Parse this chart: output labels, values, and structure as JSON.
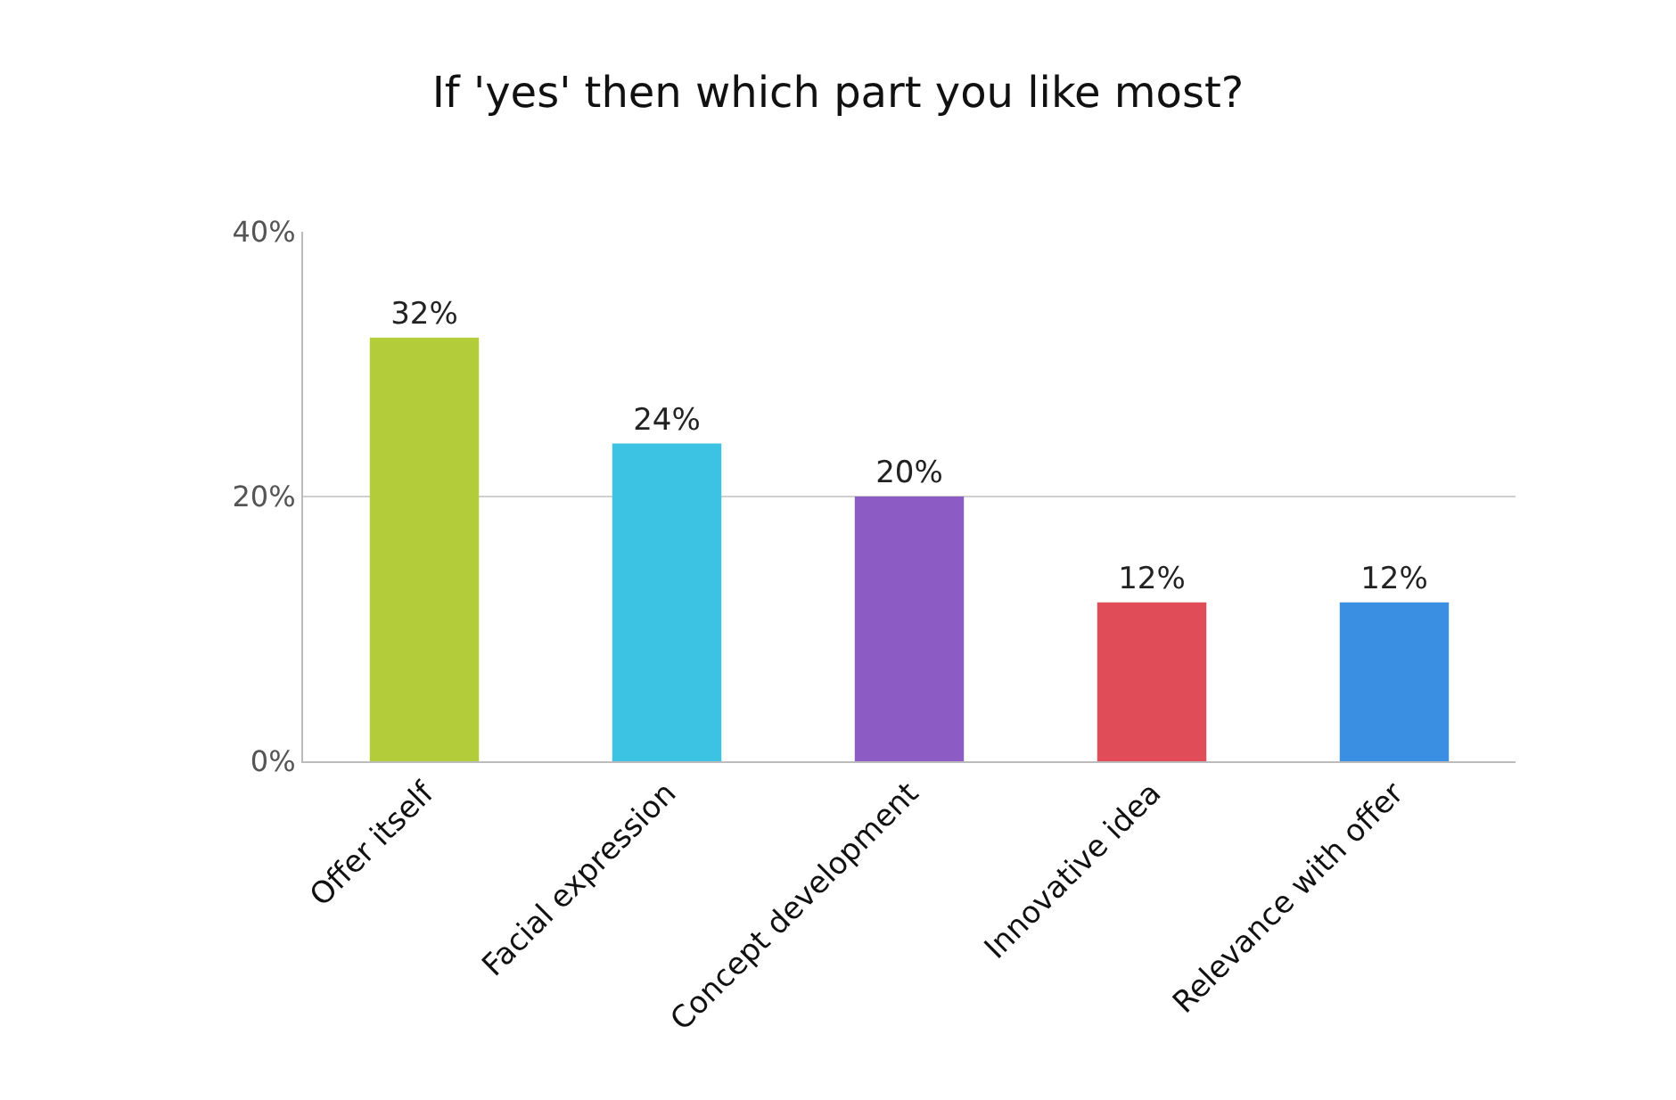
{
  "chart_data": {
    "type": "bar",
    "title": "If 'yes' then which part you like most?",
    "categories": [
      "Offer itself",
      "Facial expression",
      "Concept development",
      "Innovative idea",
      "Relevance with offer"
    ],
    "values": [
      32,
      24,
      20,
      12,
      12
    ],
    "value_labels": [
      "32%",
      "24%",
      "20%",
      "12%",
      "12%"
    ],
    "colors": [
      "#b3cc3a",
      "#3cc3e3",
      "#8c5cc4",
      "#e04c58",
      "#3b8fe2"
    ],
    "ylim": [
      0,
      40
    ],
    "yticks": [
      {
        "value": 0,
        "label": "0%"
      },
      {
        "value": 20,
        "label": "20%"
      },
      {
        "value": 40,
        "label": "40%"
      }
    ],
    "grid": "y"
  }
}
